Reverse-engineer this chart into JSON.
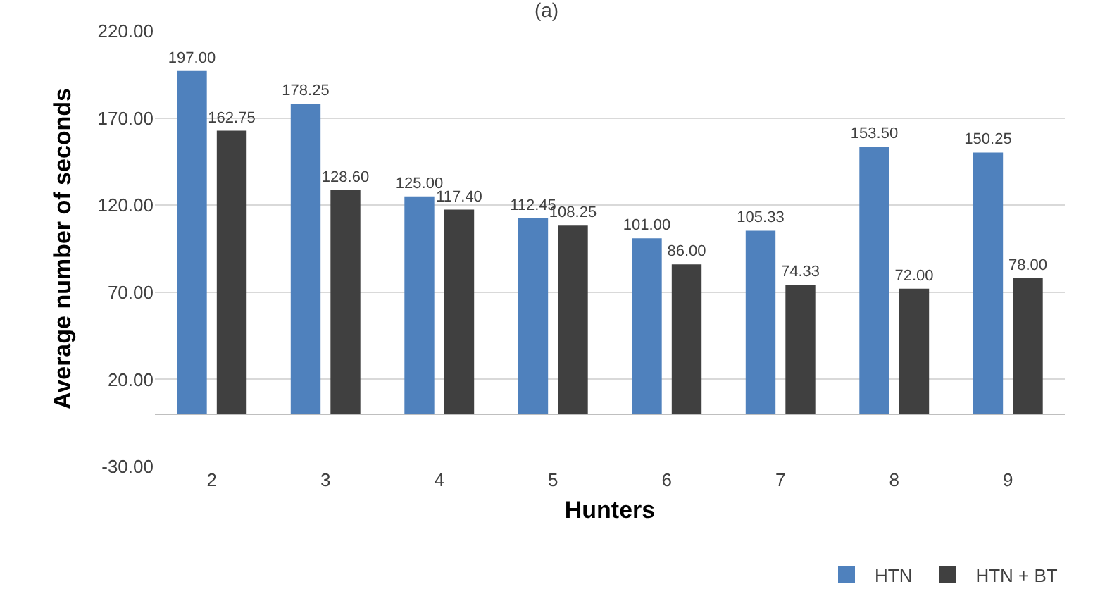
{
  "chart_data": {
    "type": "bar",
    "title": "(a)",
    "xlabel": "Hunters",
    "ylabel": "Average number of seconds",
    "categories": [
      "2",
      "3",
      "4",
      "5",
      "6",
      "7",
      "8",
      "9"
    ],
    "series": [
      {
        "name": "HTN",
        "color": "#4f81bd",
        "values": [
          197.0,
          178.25,
          125.0,
          112.45,
          101.0,
          105.33,
          153.5,
          150.25
        ],
        "value_labels": [
          "197.00",
          "178.25",
          "125.00",
          "112.45",
          "101.00",
          "105.33",
          "153.50",
          "150.25"
        ]
      },
      {
        "name": "HTN + BT",
        "color": "#404040",
        "values": [
          162.75,
          128.6,
          117.4,
          108.25,
          86.0,
          74.33,
          72.0,
          78.0
        ],
        "value_labels": [
          "162.75",
          "128.60",
          "117.40",
          "108.25",
          "86.00",
          "74.33",
          "72.00",
          "78.00"
        ]
      }
    ],
    "ylim": [
      -30,
      220
    ],
    "yticks": [
      {
        "value": -30,
        "label": "-30.00"
      },
      {
        "value": 20,
        "label": "20.00"
      },
      {
        "value": 70,
        "label": "70.00"
      },
      {
        "value": 120,
        "label": "120.00"
      },
      {
        "value": 170,
        "label": "170.00"
      },
      {
        "value": 220,
        "label": "220.00"
      }
    ],
    "grid": "y",
    "legend": "bottom right"
  }
}
